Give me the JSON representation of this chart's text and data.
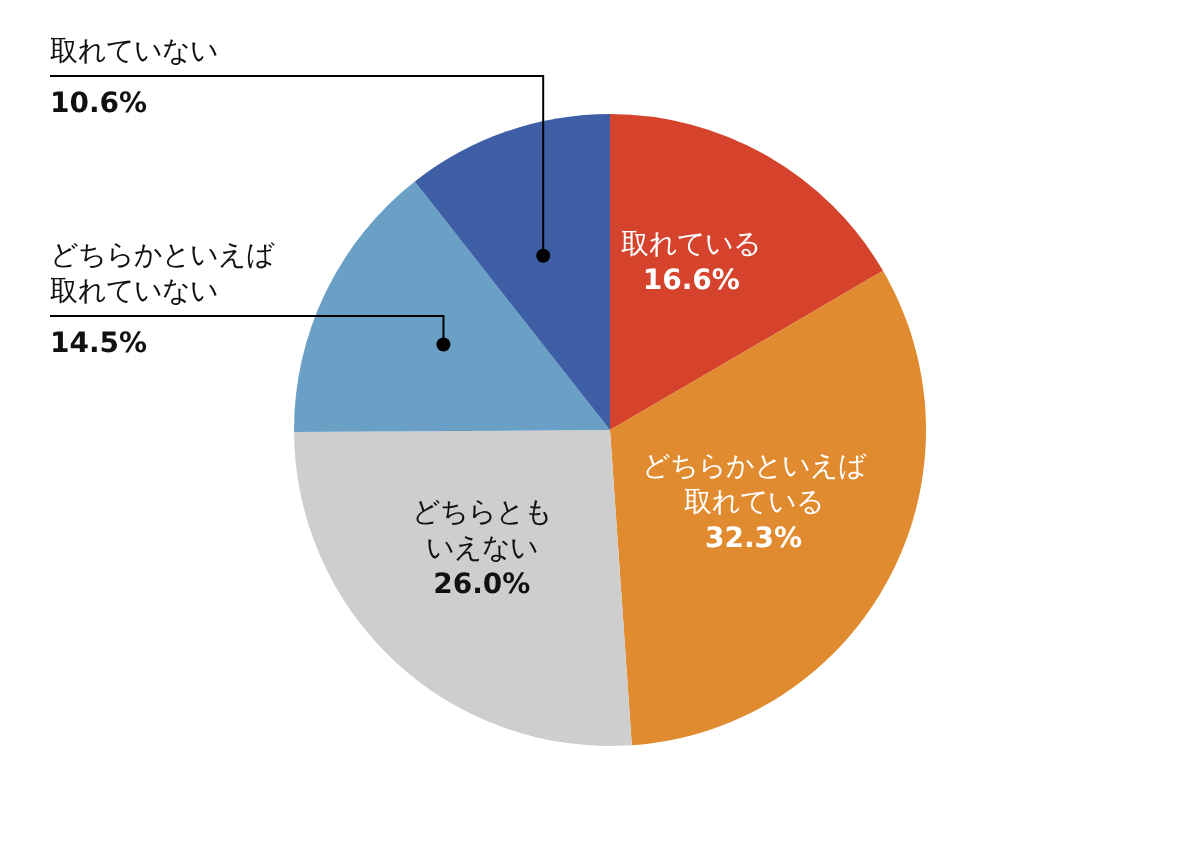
{
  "chart_data": {
    "type": "pie",
    "categories": [
      "取れている",
      "どちらかといえば取れている",
      "どちらともいえない",
      "どちらかといえば取れていない",
      "取れていない"
    ],
    "values": [
      16.6,
      32.3,
      26.0,
      14.5,
      10.6
    ],
    "value_labels": [
      "16.6%",
      "32.3%",
      "26.0%",
      "14.5%",
      "10.6%"
    ],
    "colors": [
      "#d5432c",
      "#e08b2f",
      "#cecece",
      "#6a9fc6",
      "#3e5fa6"
    ]
  }
}
